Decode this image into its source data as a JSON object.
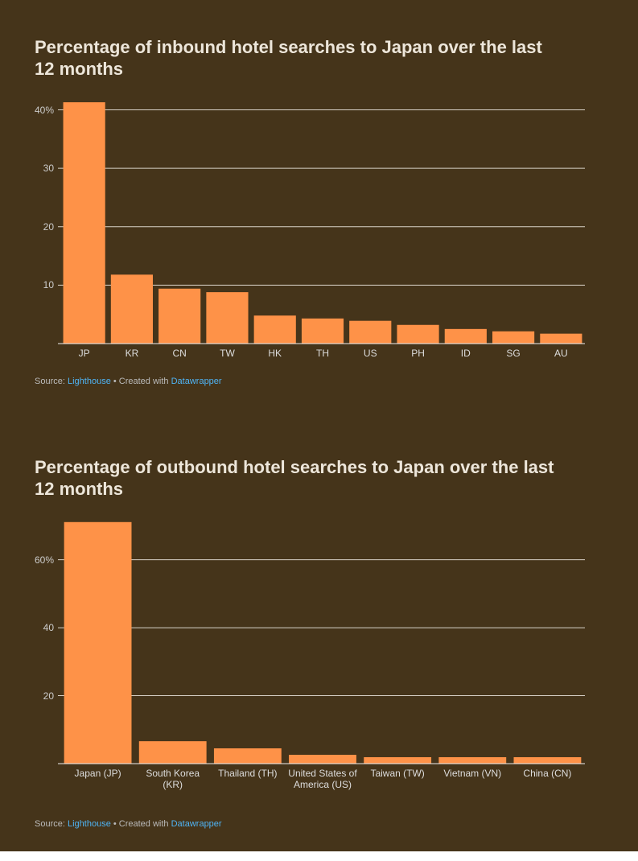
{
  "chart_data": [
    {
      "type": "bar",
      "title": "Percentage of inbound hotel searches to Japan over the last 12 months",
      "categories": [
        "JP",
        "KR",
        "CN",
        "TW",
        "HK",
        "TH",
        "US",
        "PH",
        "ID",
        "SG",
        "AU"
      ],
      "values": [
        41.3,
        11.8,
        9.4,
        8.8,
        4.8,
        4.3,
        3.9,
        3.2,
        2.5,
        2.1,
        1.7
      ],
      "color": "#fe9248",
      "ylim": [
        0,
        42
      ],
      "yticks": [
        10,
        20,
        30,
        {
          "value": 40,
          "label": "40%"
        }
      ],
      "grid": true,
      "source_label": "Source:",
      "source": "Lighthouse",
      "credit_label": "• Created with",
      "credit": "Datawrapper"
    },
    {
      "type": "bar",
      "title": "Percentage of outbound hotel searches to Japan over the last 12 months",
      "categories": [
        "Japan (JP)",
        "South Korea (KR)",
        "Thailand (TH)",
        "United States of America (US)",
        "Taiwan (TW)",
        "Vietnam (VN)",
        "China (CN)"
      ],
      "values": [
        71.1,
        6.6,
        4.5,
        2.6,
        1.9,
        1.9,
        1.9
      ],
      "color": "#fe9248",
      "ylim": [
        0,
        72
      ],
      "yticks": [
        20,
        40,
        {
          "value": 60,
          "label": "60%"
        }
      ],
      "grid": true,
      "source_label": "Source:",
      "source": "Lighthouse",
      "credit_label": "• Created with",
      "credit": "Datawrapper"
    }
  ]
}
